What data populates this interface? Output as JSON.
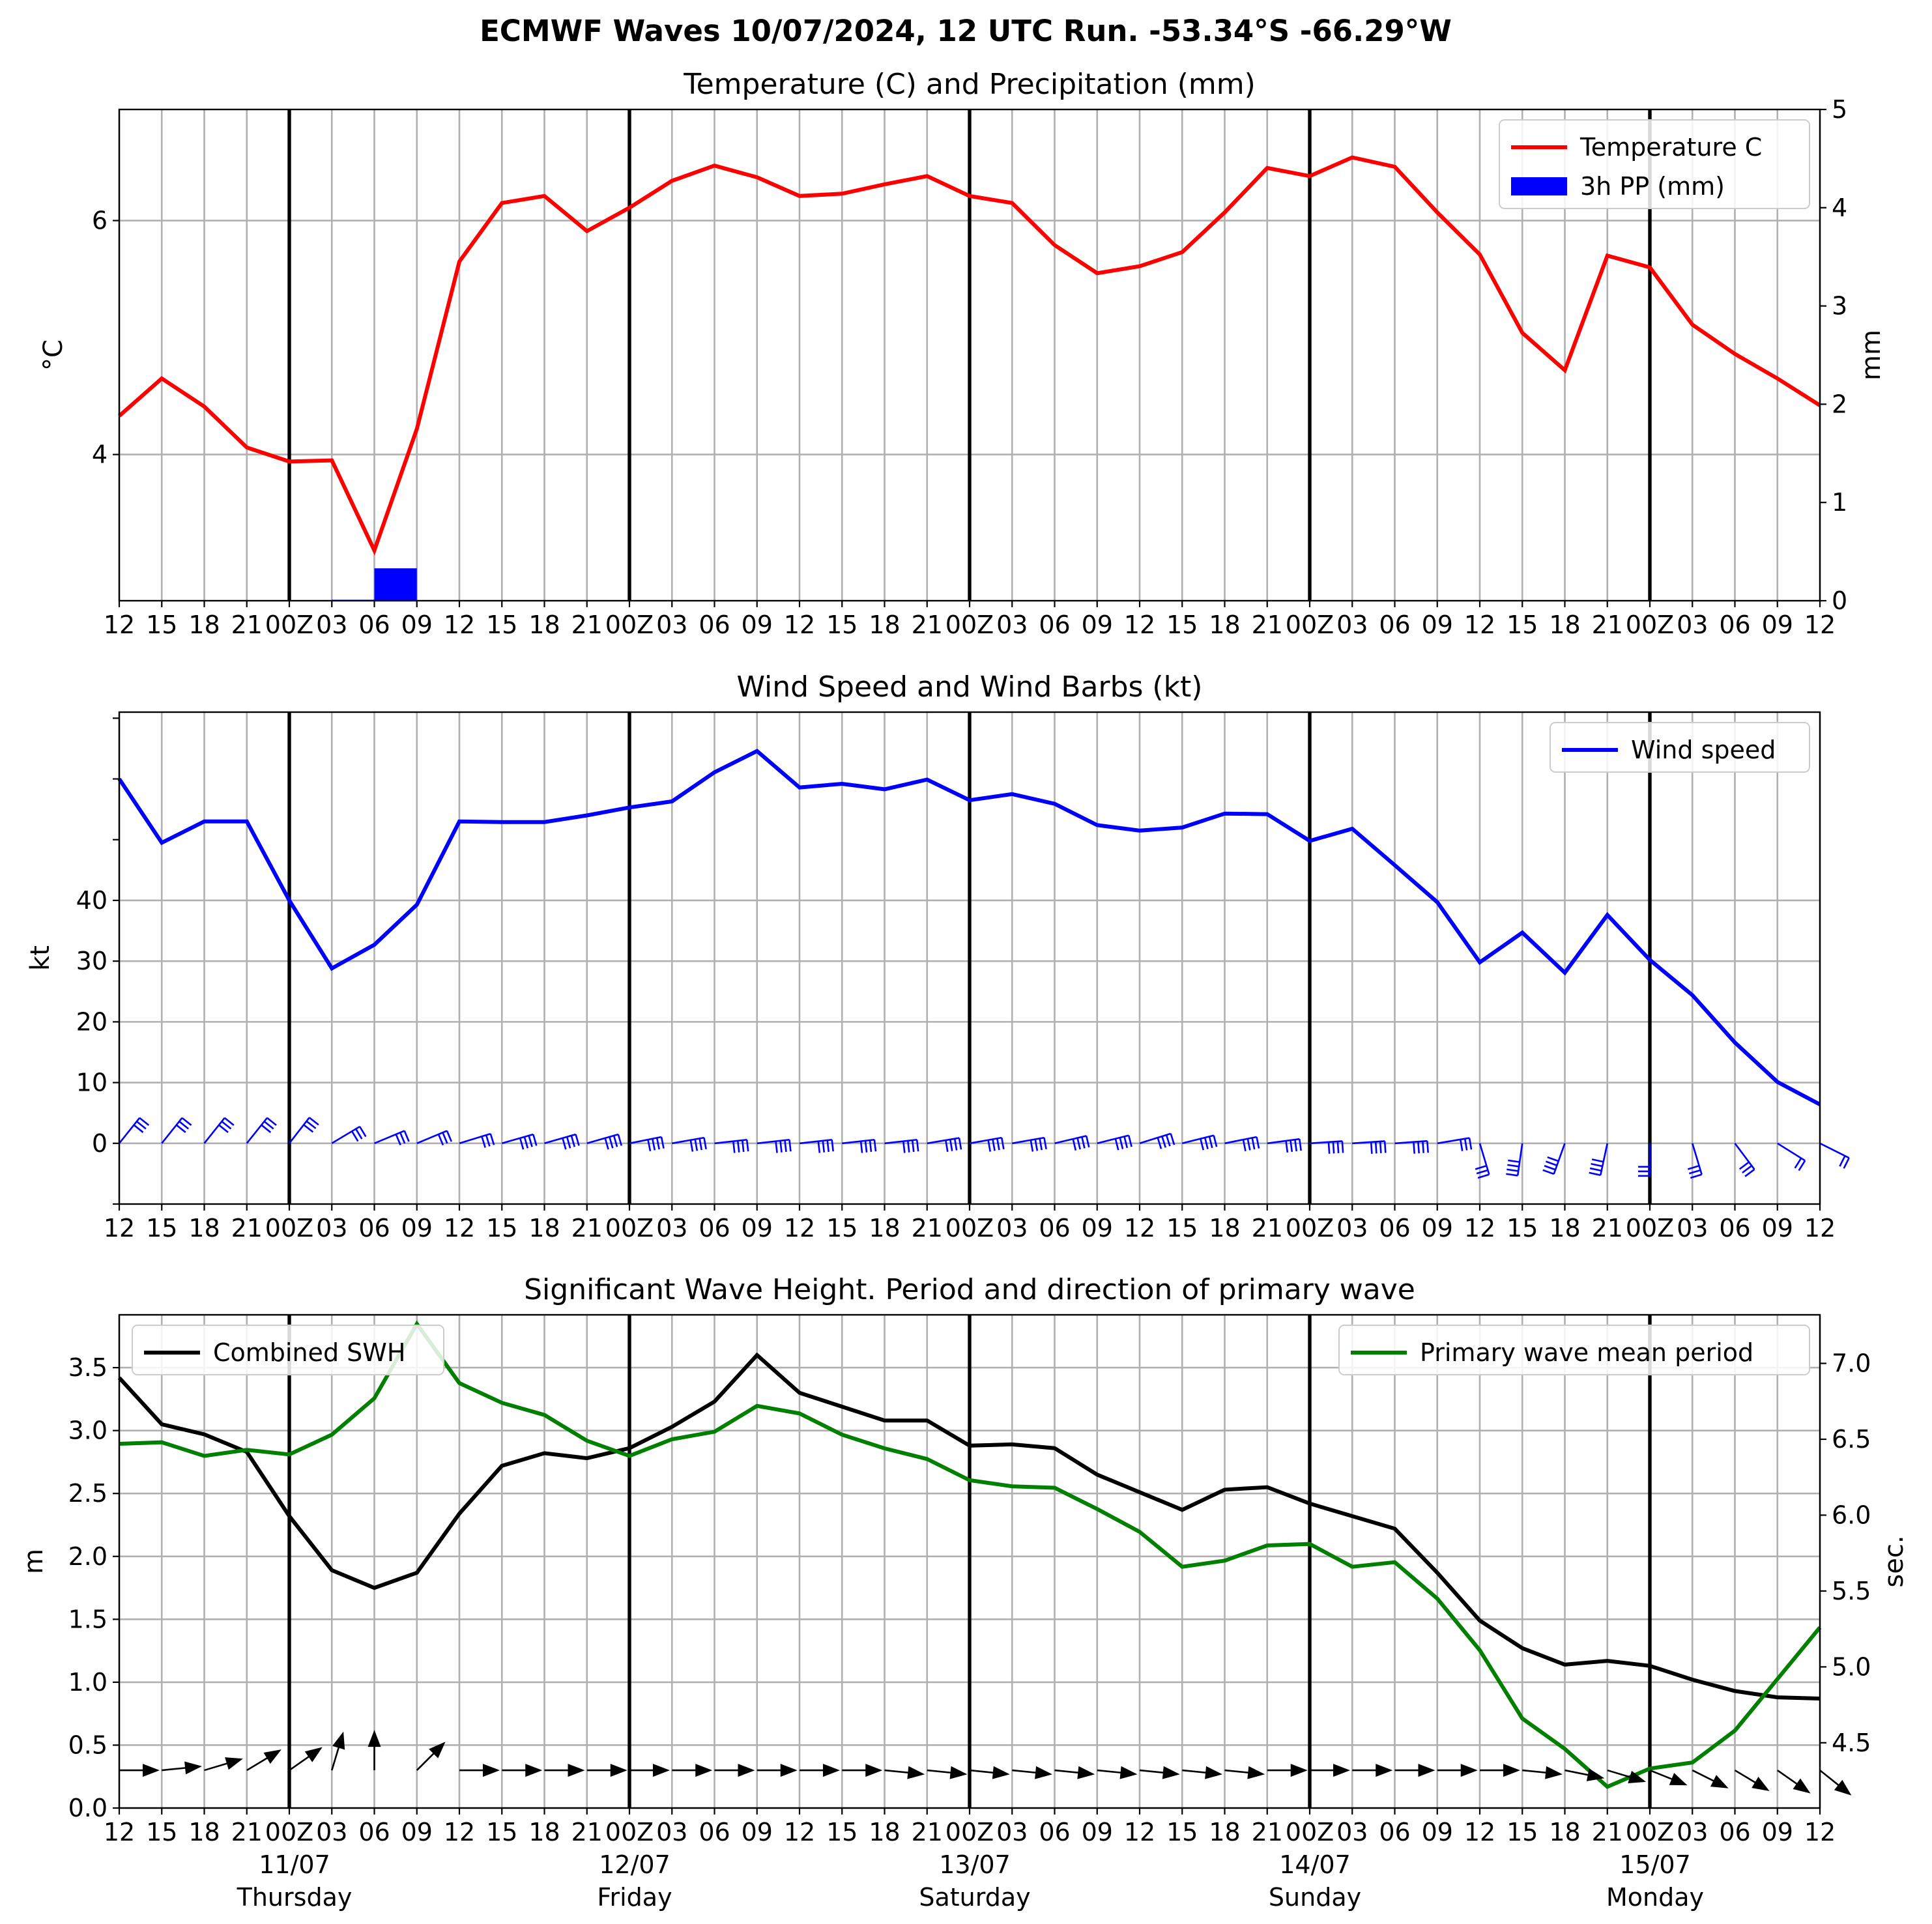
{
  "chart_data": {
    "suptitle": "ECMWF Waves 10/07/2024, 12 UTC Run. -53.34°S -66.29°W",
    "time_ticks": [
      "12",
      "15",
      "18",
      "21",
      "00Z",
      "03",
      "06",
      "09",
      "12",
      "15",
      "18",
      "21",
      "00Z",
      "03",
      "06",
      "09",
      "12",
      "15",
      "18",
      "21",
      "00Z",
      "03",
      "06",
      "09",
      "12",
      "15",
      "18",
      "21",
      "00Z",
      "03",
      "06",
      "09",
      "12",
      "15",
      "18",
      "21",
      "00Z",
      "03",
      "06",
      "09",
      "12"
    ],
    "day_labels": [
      {
        "date": "11/07",
        "weekday": "Thursday",
        "index": 4
      },
      {
        "date": "12/07",
        "weekday": "Friday",
        "index": 12
      },
      {
        "date": "13/07",
        "weekday": "Saturday",
        "index": 20
      },
      {
        "date": "14/07",
        "weekday": "Sunday",
        "index": 28
      },
      {
        "date": "15/07",
        "weekday": "Monday",
        "index": 36
      }
    ],
    "panels": [
      {
        "type": "line+bar",
        "title": "Temperature (C) and Precipitation (mm)",
        "ylabel": "°C",
        "ylabel_right": "mm",
        "ylim": [
          2.75,
          6.95
        ],
        "yticks": [
          4,
          6
        ],
        "ylim_right": [
          0,
          5
        ],
        "yticks_right": [
          0,
          1,
          2,
          3,
          4,
          5
        ],
        "legend_position": "upper right",
        "series": [
          {
            "name": "Temperature C",
            "axis": "left",
            "kind": "line",
            "color": "#ff0000",
            "values": [
              4.33,
              4.65,
              4.41,
              4.06,
              3.94,
              3.95,
              3.18,
              4.22,
              5.65,
              6.15,
              6.21,
              5.91,
              6.11,
              6.34,
              6.47,
              6.37,
              6.21,
              6.23,
              6.31,
              6.38,
              6.21,
              6.15,
              5.79,
              5.55,
              5.61,
              5.73,
              6.07,
              6.45,
              6.38,
              6.54,
              6.46,
              6.07,
              5.71,
              5.04,
              4.72,
              5.7,
              5.6,
              5.11,
              4.86,
              4.65,
              4.42
            ]
          },
          {
            "name": "3h PP (mm)",
            "axis": "right",
            "kind": "bar",
            "color": "#0000ff",
            "values": [
              0,
              0,
              0,
              0,
              0,
              0,
              0.01,
              0.33,
              0,
              0,
              0,
              0,
              0,
              0,
              0,
              0,
              0,
              0,
              0,
              0,
              0,
              0,
              0,
              0,
              0,
              0,
              0,
              0,
              0,
              0,
              0,
              0,
              0,
              0,
              0,
              0,
              0,
              0,
              0,
              0,
              0
            ]
          }
        ]
      },
      {
        "type": "line+barbs",
        "title": "Wind Speed and Wind Barbs (kt)",
        "ylabel": "kt",
        "ylim": [
          -10,
          71
        ],
        "yticks": [
          0,
          10,
          20,
          30,
          40
        ],
        "minor_ticks": [
          -10,
          50,
          60,
          70
        ],
        "legend_position": "upper right",
        "series": [
          {
            "name": "Wind speed",
            "kind": "line",
            "color": "#0000ff",
            "values": [
              60,
              49.5,
              53,
              53,
              40,
              28.8,
              32.7,
              39.3,
              53,
              52.9,
              52.9,
              54,
              55.3,
              56.3,
              61.1,
              64.6,
              58.6,
              59.2,
              58.3,
              59.9,
              56.5,
              57.5,
              55.9,
              52.4,
              51.5,
              52,
              54.3,
              54.2,
              49.8,
              51.8,
              45.8,
              39.7,
              29.8,
              34.7,
              28.1,
              37.6,
              30.2,
              24.4,
              16.6,
              10.1,
              6.4
            ]
          },
          {
            "name": "wind barbs",
            "kind": "barbs",
            "color": "#0000ff",
            "u": [
              -8,
              -8,
              -8,
              -8,
              -7,
              -10,
              -12,
              -12,
              -13,
              -14,
              -14,
              -14,
              -15,
              -17,
              -18,
              -18,
              -18,
              -18,
              -18,
              -18,
              -17,
              -17,
              -17,
              -16,
              -16,
              -16,
              -15,
              -15,
              -15,
              -15,
              -14,
              -12,
              -3,
              2,
              5,
              3,
              0,
              -3,
              -6,
              -8,
              -6
            ],
            "v": [
              -10,
              -10,
              -10,
              -10,
              -9,
              -6,
              -5,
              -5,
              -4,
              -4,
              -4,
              -4,
              -3,
              -3,
              -2,
              -2,
              -2,
              -2,
              -2,
              -3,
              -3,
              -3,
              -4,
              -4,
              -5,
              -4,
              -3,
              -2,
              -1,
              -1,
              -1,
              -2,
              10,
              14,
              14,
              14,
              12,
              10,
              8,
              5,
              3
            ]
          }
        ]
      },
      {
        "type": "line+arrows",
        "title": "Significant Wave Height. Period and direction of primary wave",
        "ylabel": "m",
        "ylabel_right": "sec.",
        "ylim": [
          0,
          3.92
        ],
        "yticks": [
          0.0,
          0.5,
          1.0,
          1.5,
          2.0,
          2.5,
          3.0,
          3.5
        ],
        "ylim_right": [
          4.07,
          7.32
        ],
        "yticks_right": [
          4.5,
          5.0,
          5.5,
          6.0,
          6.5,
          7.0
        ],
        "legend_left": "upper left",
        "legend_right": "upper right",
        "series": [
          {
            "name": "Combined SWH",
            "axis": "left",
            "kind": "line",
            "color": "#000000",
            "values": [
              3.42,
              3.05,
              2.97,
              2.83,
              2.32,
              1.89,
              1.75,
              1.87,
              2.34,
              2.72,
              2.82,
              2.78,
              2.86,
              3.03,
              3.23,
              3.6,
              3.3,
              3.19,
              3.08,
              3.08,
              2.88,
              2.89,
              2.86,
              2.65,
              2.51,
              2.37,
              2.53,
              2.55,
              2.42,
              2.32,
              2.22,
              1.87,
              1.49,
              1.27,
              1.14,
              1.17,
              1.13,
              1.02,
              0.93,
              0.88,
              0.87
            ]
          },
          {
            "name": "Primary wave mean period",
            "axis": "right",
            "kind": "line",
            "color": "#007f00",
            "values": [
              6.47,
              6.48,
              6.39,
              6.43,
              6.4,
              6.53,
              6.77,
              7.26,
              6.87,
              6.74,
              6.66,
              6.49,
              6.39,
              6.5,
              6.55,
              6.72,
              6.67,
              6.53,
              6.44,
              6.37,
              6.23,
              6.19,
              6.18,
              6.04,
              5.89,
              5.66,
              5.7,
              5.8,
              5.81,
              5.66,
              5.69,
              5.45,
              5.11,
              4.66,
              4.46,
              4.21,
              4.33,
              4.37,
              4.58,
              4.92,
              5.26
            ]
          },
          {
            "name": "primary wave direction",
            "kind": "arrows",
            "color": "#000000",
            "u": [
              1,
              1,
              1,
              1,
              1,
              0.3,
              0,
              0.7,
              1,
              1,
              1,
              1,
              1,
              1,
              1,
              1,
              1,
              1,
              1,
              1,
              1,
              1,
              1,
              1,
              1,
              1,
              1,
              1,
              1,
              1,
              1,
              1,
              1,
              1,
              1,
              1,
              1,
              1,
              1,
              1,
              1
            ],
            "v": [
              0,
              0.1,
              0.3,
              0.6,
              0.7,
              1,
              1,
              0.7,
              0,
              0,
              0,
              0,
              0,
              0,
              0,
              0,
              0,
              0,
              -0.1,
              -0.1,
              -0.1,
              -0.1,
              -0.1,
              -0.1,
              -0.1,
              -0.1,
              -0.1,
              0,
              0,
              0,
              0,
              0,
              0,
              -0.1,
              -0.2,
              -0.3,
              -0.4,
              -0.5,
              -0.6,
              -0.7,
              -0.8
            ]
          }
        ]
      }
    ]
  }
}
